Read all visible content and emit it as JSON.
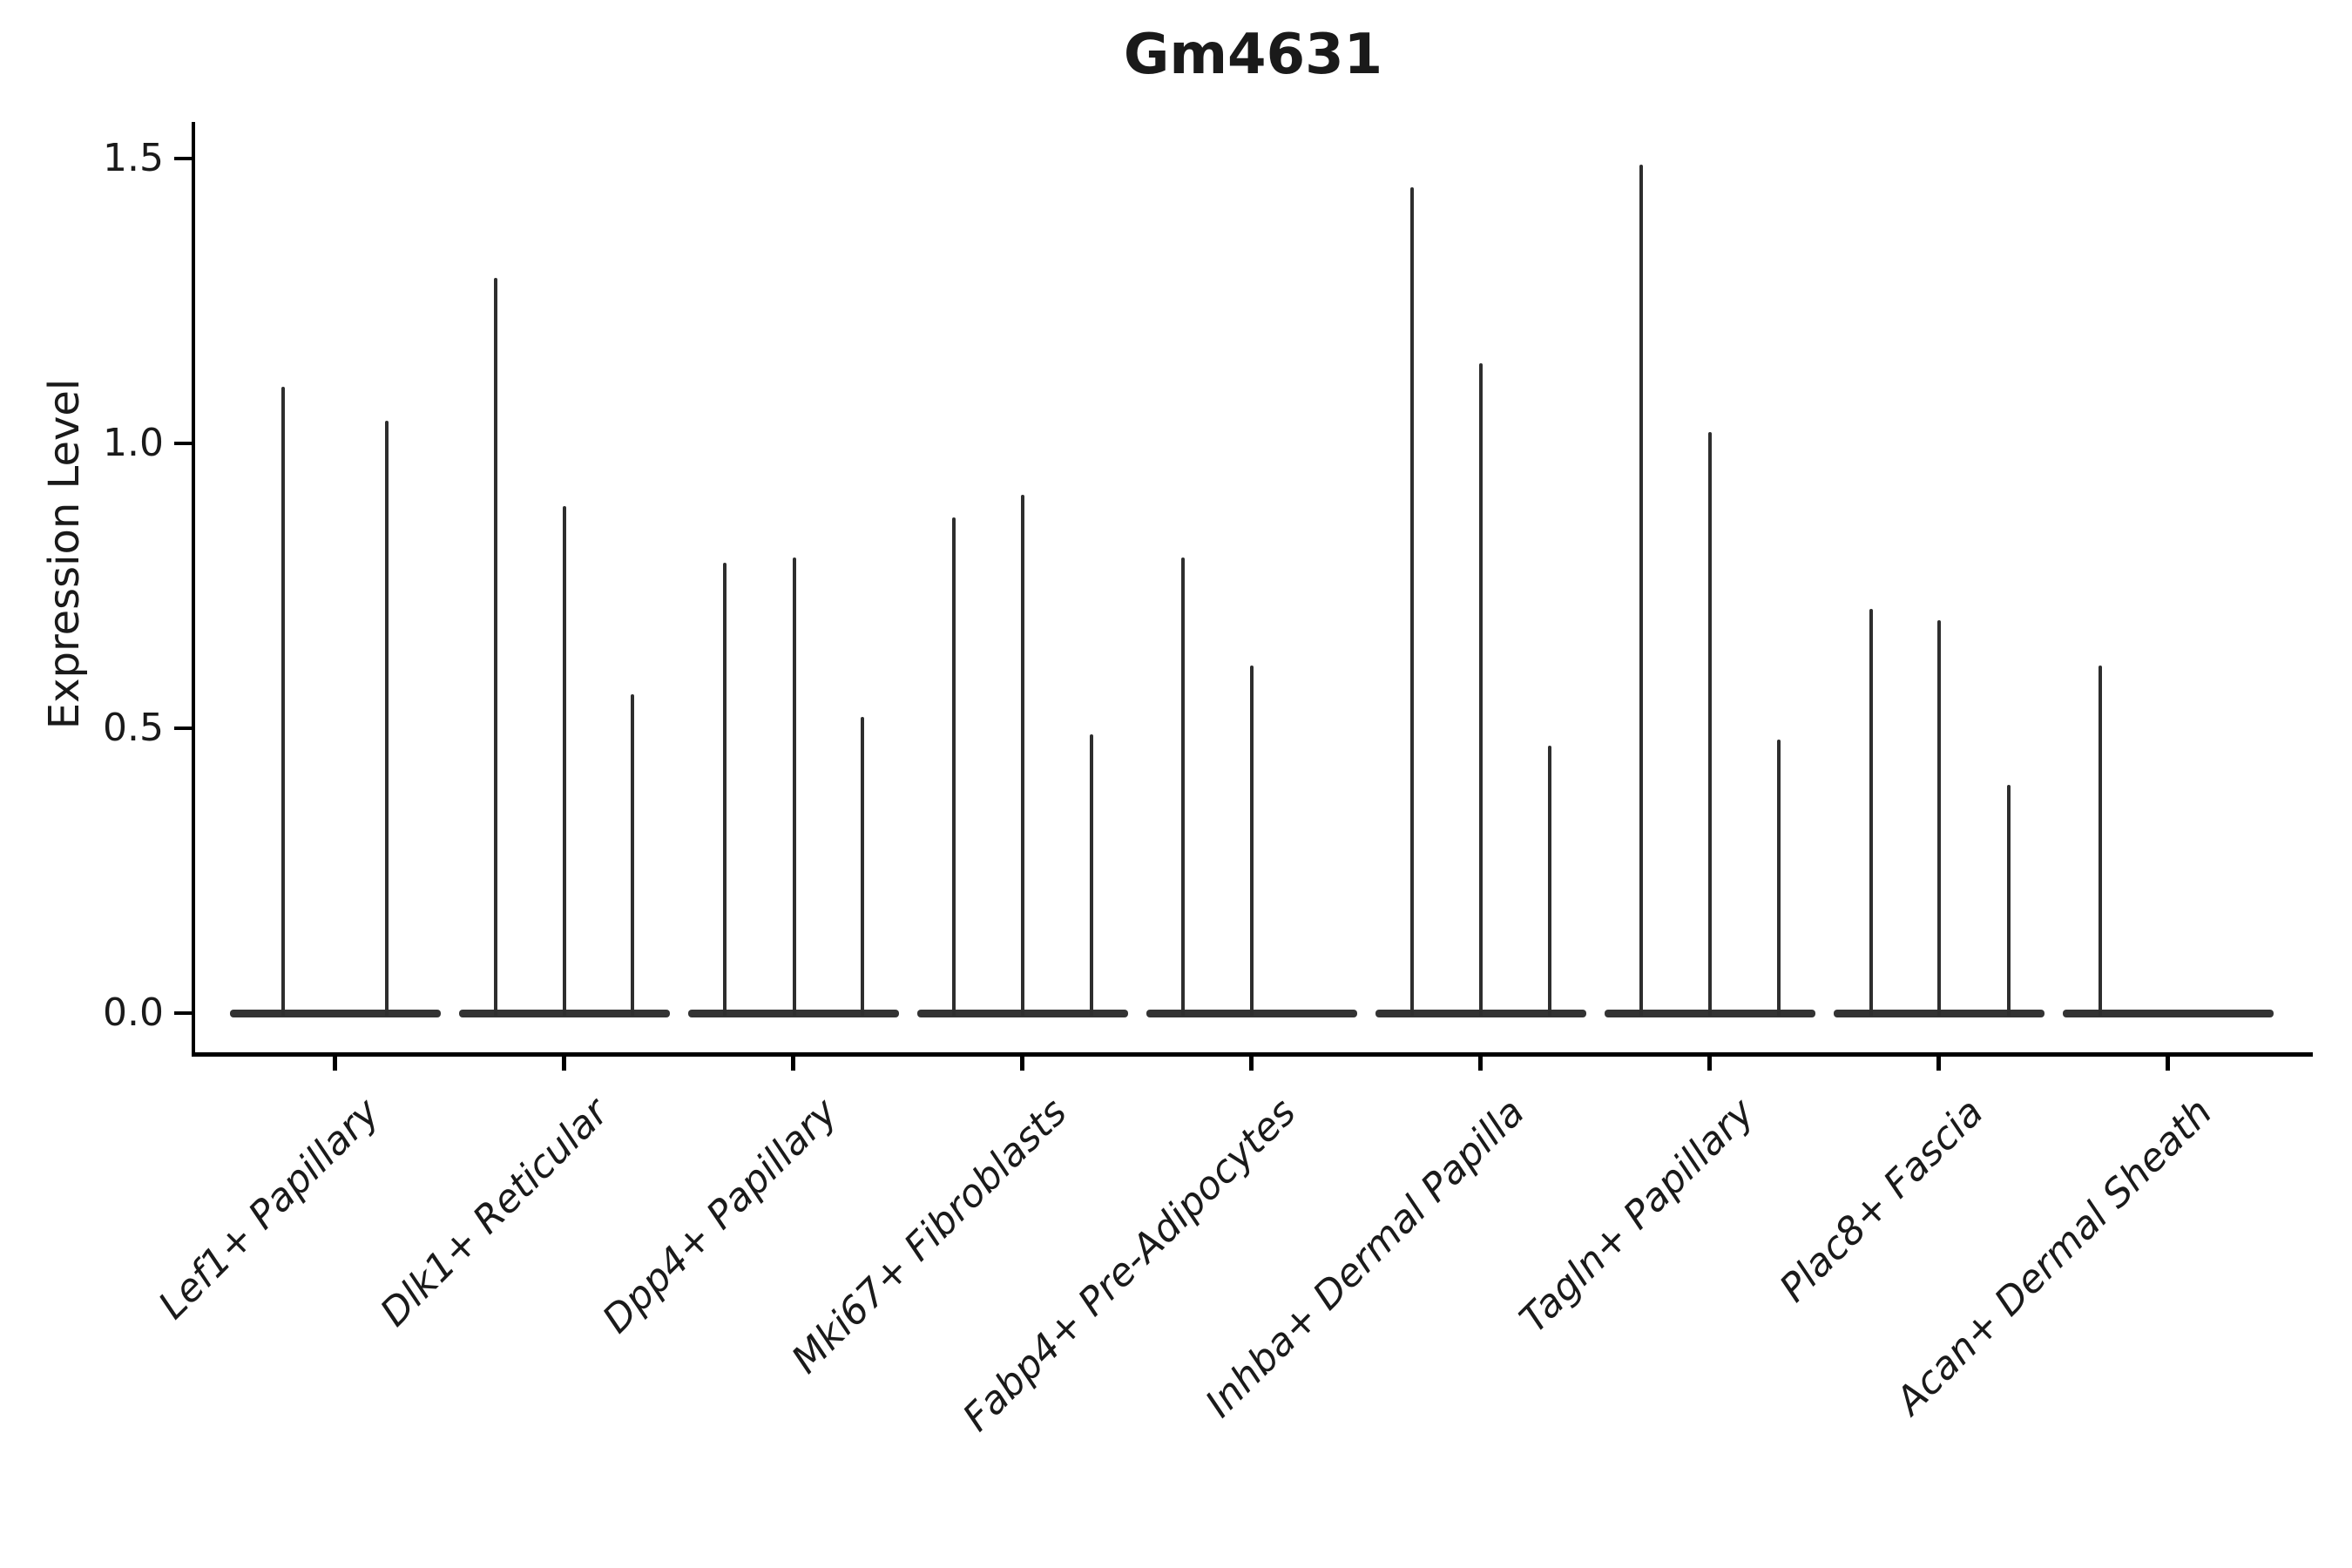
{
  "page": {
    "background": "#ffffff"
  },
  "chart": {
    "title": "Gm4631",
    "y_axis": {
      "label": "Expression Level"
    },
    "x_axis": {
      "label": ""
    }
  },
  "chart_data": {
    "type": "violin",
    "title": "Gm4631",
    "xlabel": "",
    "ylabel": "Expression Level",
    "ylim": [
      0,
      1.5
    ],
    "yticks": [
      0,
      0.5,
      1,
      1.5
    ],
    "ytick_labels": [
      "0.0",
      "0.5",
      "1.0",
      "1.5"
    ],
    "grid": false,
    "legend": "none",
    "categories": [
      "Lef1+ Papillary",
      "Dlk1+ Reticular",
      "Dpp4+ Papillary",
      "Mki67+ Fibroblasts",
      "Fabp4+ Pre-Adipocytes",
      "Inhba+ Dermal Papilla",
      "Tagln+ Papillary",
      "Plac8+ Fascia",
      "Acan+ Dermal Sheath"
    ],
    "groups": [
      {
        "category": "Lef1+ Papillary",
        "violins": [
          {
            "dx": -60,
            "max": 1.1
          },
          {
            "dx": 59,
            "max": 1.04
          }
        ]
      },
      {
        "category": "Dlk1+ Reticular",
        "violins": [
          {
            "dx": -79,
            "max": 1.29
          },
          {
            "dx": 0,
            "max": 0.89
          },
          {
            "dx": 78,
            "max": 0.56
          }
        ]
      },
      {
        "category": "Dpp4+ Papillary",
        "violins": [
          {
            "dx": -79,
            "max": 0.79
          },
          {
            "dx": 1,
            "max": 0.8
          },
          {
            "dx": 79,
            "max": 0.52
          }
        ]
      },
      {
        "category": "Mki67+ Fibroblasts",
        "violins": [
          {
            "dx": -79,
            "max": 0.87
          },
          {
            "dx": 0,
            "max": 0.91
          },
          {
            "dx": 79,
            "max": 0.49
          }
        ]
      },
      {
        "category": "Fabp4+ Pre-Adipocytes",
        "violins": [
          {
            "dx": -79,
            "max": 0.8
          },
          {
            "dx": 0,
            "max": 0.61
          }
        ]
      },
      {
        "category": "Inhba+ Dermal Papilla",
        "violins": [
          {
            "dx": -79,
            "max": 1.45
          },
          {
            "dx": 0,
            "max": 1.14
          },
          {
            "dx": 79,
            "max": 0.47
          }
        ]
      },
      {
        "category": "Tagln+ Papillary",
        "violins": [
          {
            "dx": -79,
            "max": 1.49
          },
          {
            "dx": 0,
            "max": 1.02
          },
          {
            "dx": 79,
            "max": 0.48
          }
        ]
      },
      {
        "category": "Plac8+ Fascia",
        "violins": [
          {
            "dx": -78,
            "max": 0.71
          },
          {
            "dx": 0,
            "max": 0.69
          },
          {
            "dx": 80,
            "max": 0.4
          }
        ]
      },
      {
        "category": "Acan+ Dermal Sheath",
        "violins": [
          {
            "dx": -78,
            "max": 0.61
          }
        ]
      }
    ]
  },
  "style": {
    "ink": "#1a1a1a",
    "violin_color": "#2e2e2e",
    "violin_base_color": "#333333",
    "spine_color": "#000000",
    "background": "#ffffff"
  }
}
